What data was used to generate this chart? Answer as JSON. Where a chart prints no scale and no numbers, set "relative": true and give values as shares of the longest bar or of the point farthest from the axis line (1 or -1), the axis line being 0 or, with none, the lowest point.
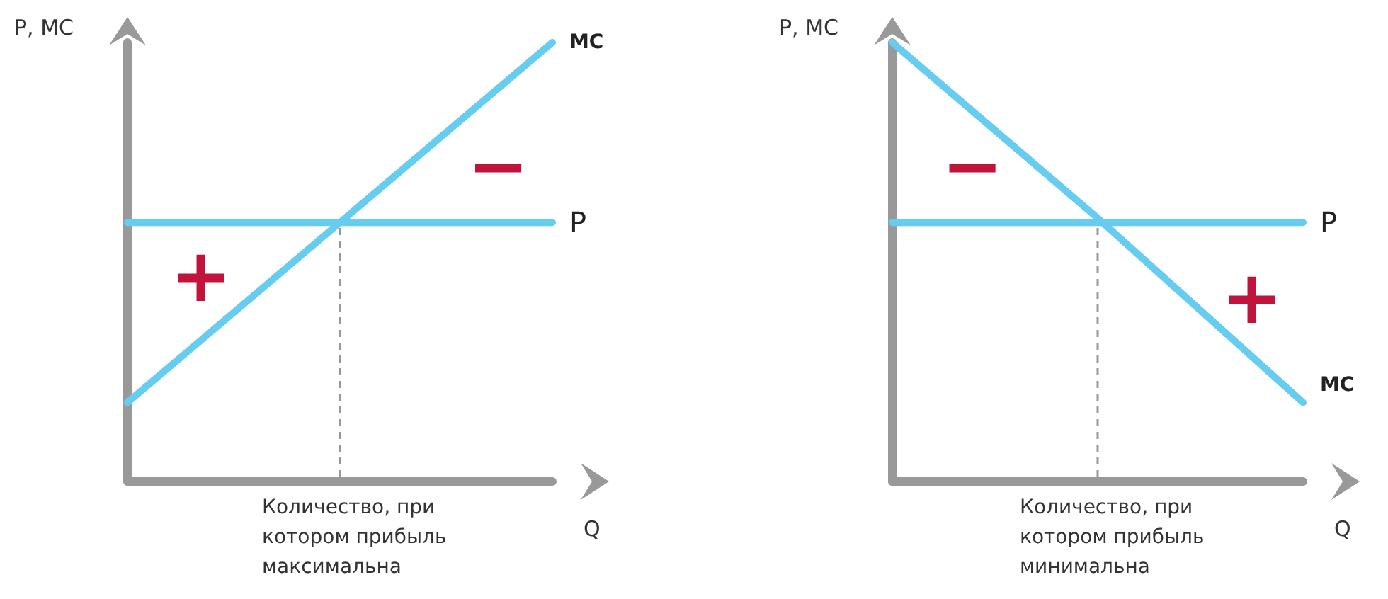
{
  "chart_data": [
    {
      "type": "line",
      "relative": true,
      "xlabel": "Q",
      "ylabel": "P, MC",
      "categories": [
        null,
        null,
        null
      ],
      "marker": "none",
      "legend": false,
      "grid": false,
      "series": [
        {
          "name": "MC",
          "color": "#66ccf0",
          "values": [
            0.18,
            0.59,
            1.0
          ]
        },
        {
          "name": "P",
          "color": "#66ccf0",
          "values": [
            0.59,
            0.59,
            0.59
          ]
        }
      ],
      "annotations": [
        "Количество, при котором прибыль максимальна",
        "+",
        "−"
      ]
    },
    {
      "type": "line",
      "relative": true,
      "xlabel": "Q",
      "ylabel": "P, MC",
      "categories": [
        null,
        null,
        null
      ],
      "marker": "none",
      "legend": false,
      "grid": false,
      "series": [
        {
          "name": "MC",
          "color": "#66ccf0",
          "values": [
            1.0,
            0.6,
            0.18
          ]
        },
        {
          "name": "P",
          "color": "#66ccf0",
          "values": [
            0.59,
            0.59,
            0.59
          ]
        }
      ],
      "annotations": [
        "Количество, при котором прибыль минимальна",
        "−",
        "+"
      ]
    }
  ]
}
